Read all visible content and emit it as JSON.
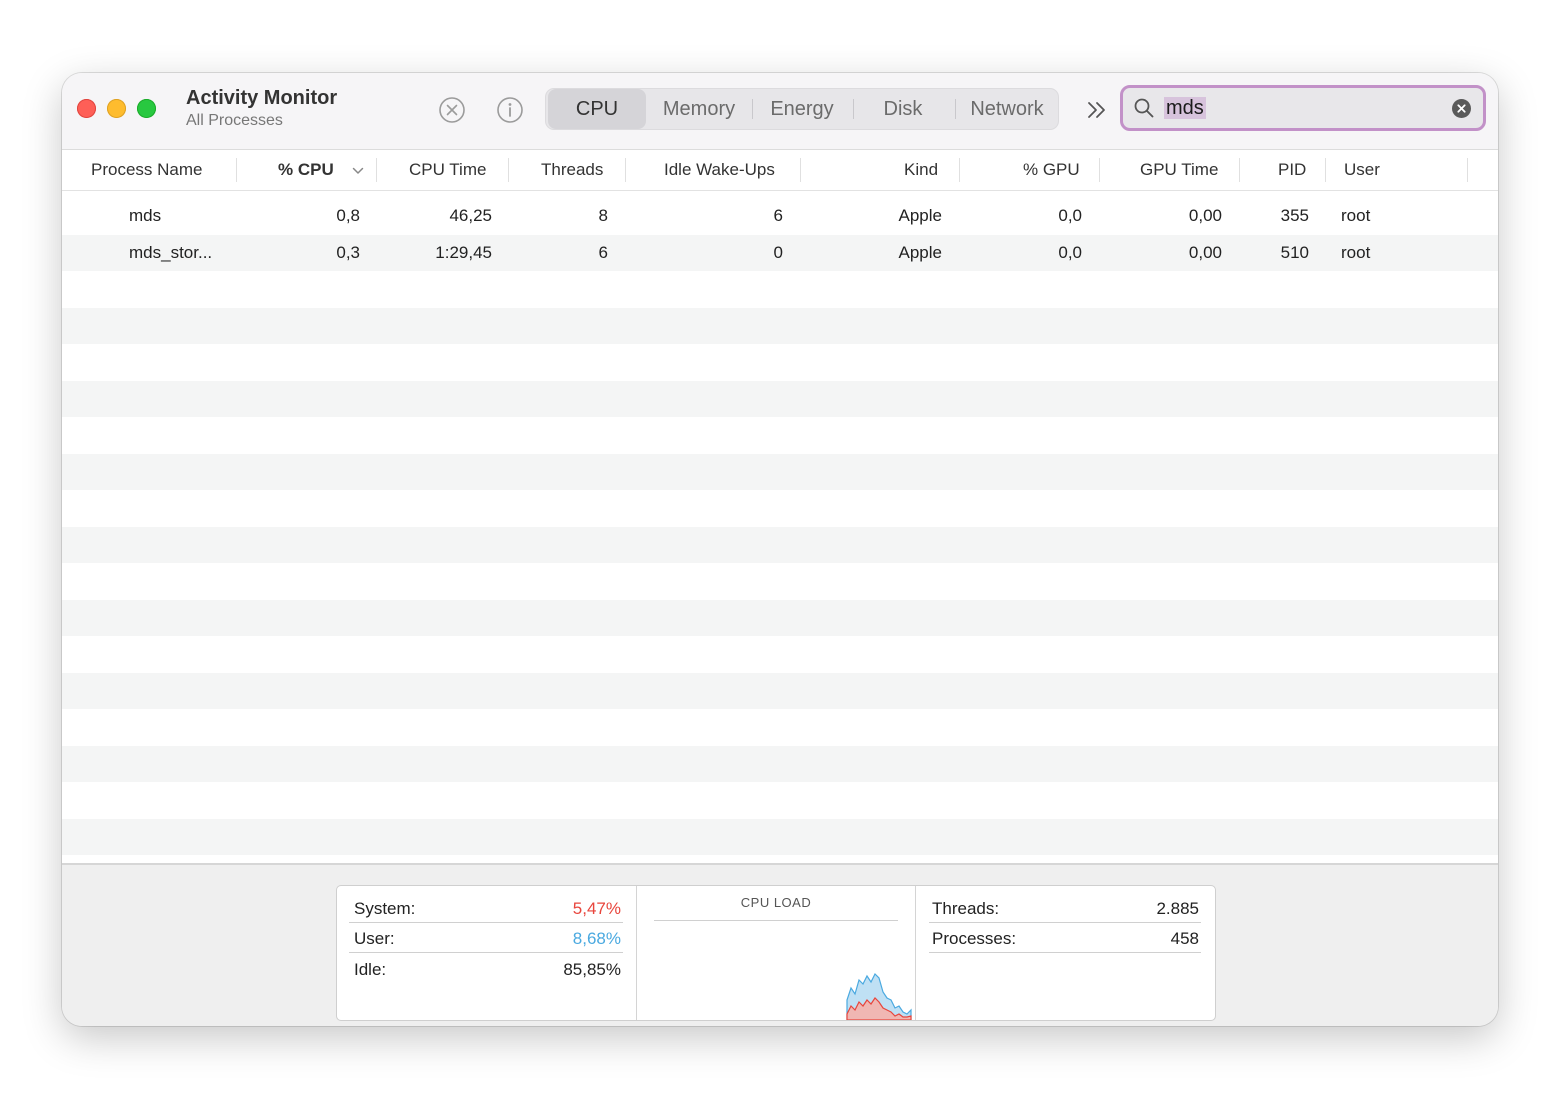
{
  "app": {
    "title": "Activity Monitor",
    "subtitle": "All Processes"
  },
  "tabs": [
    {
      "label": "CPU",
      "active": true
    },
    {
      "label": "Memory",
      "active": false
    },
    {
      "label": "Energy",
      "active": false
    },
    {
      "label": "Disk",
      "active": false
    },
    {
      "label": "Network",
      "active": false
    }
  ],
  "search": {
    "value": "mds"
  },
  "columns": [
    "Process Name",
    "% CPU",
    "CPU Time",
    "Threads",
    "Idle Wake-Ups",
    "Kind",
    "% GPU",
    "GPU Time",
    "PID",
    "User"
  ],
  "processes": [
    {
      "name": "mds",
      "cpu": "0,8",
      "cpu_time": "46,25",
      "threads": "8",
      "idle_wakeups": "6",
      "kind": "Apple",
      "gpu": "0,0",
      "gpu_time": "0,00",
      "pid": "355",
      "user": "root"
    },
    {
      "name": "mds_stor...",
      "cpu": "0,3",
      "cpu_time": "1:29,45",
      "threads": "6",
      "idle_wakeups": "0",
      "kind": "Apple",
      "gpu": "0,0",
      "gpu_time": "0,00",
      "pid": "510",
      "user": "root"
    }
  ],
  "stats": {
    "system_label": "System:",
    "system_value": "5,47%",
    "user_label": "User:",
    "user_value": "8,68%",
    "idle_label": "Idle:",
    "idle_value": "85,85%",
    "cpu_load_title": "CPU LOAD",
    "threads_label": "Threads:",
    "threads_value": "2.885",
    "processes_label": "Processes:",
    "processes_value": "458"
  },
  "colors": {
    "system": "#e8453c",
    "user": "#4aa9e0",
    "search_focus": "#c291c8"
  }
}
